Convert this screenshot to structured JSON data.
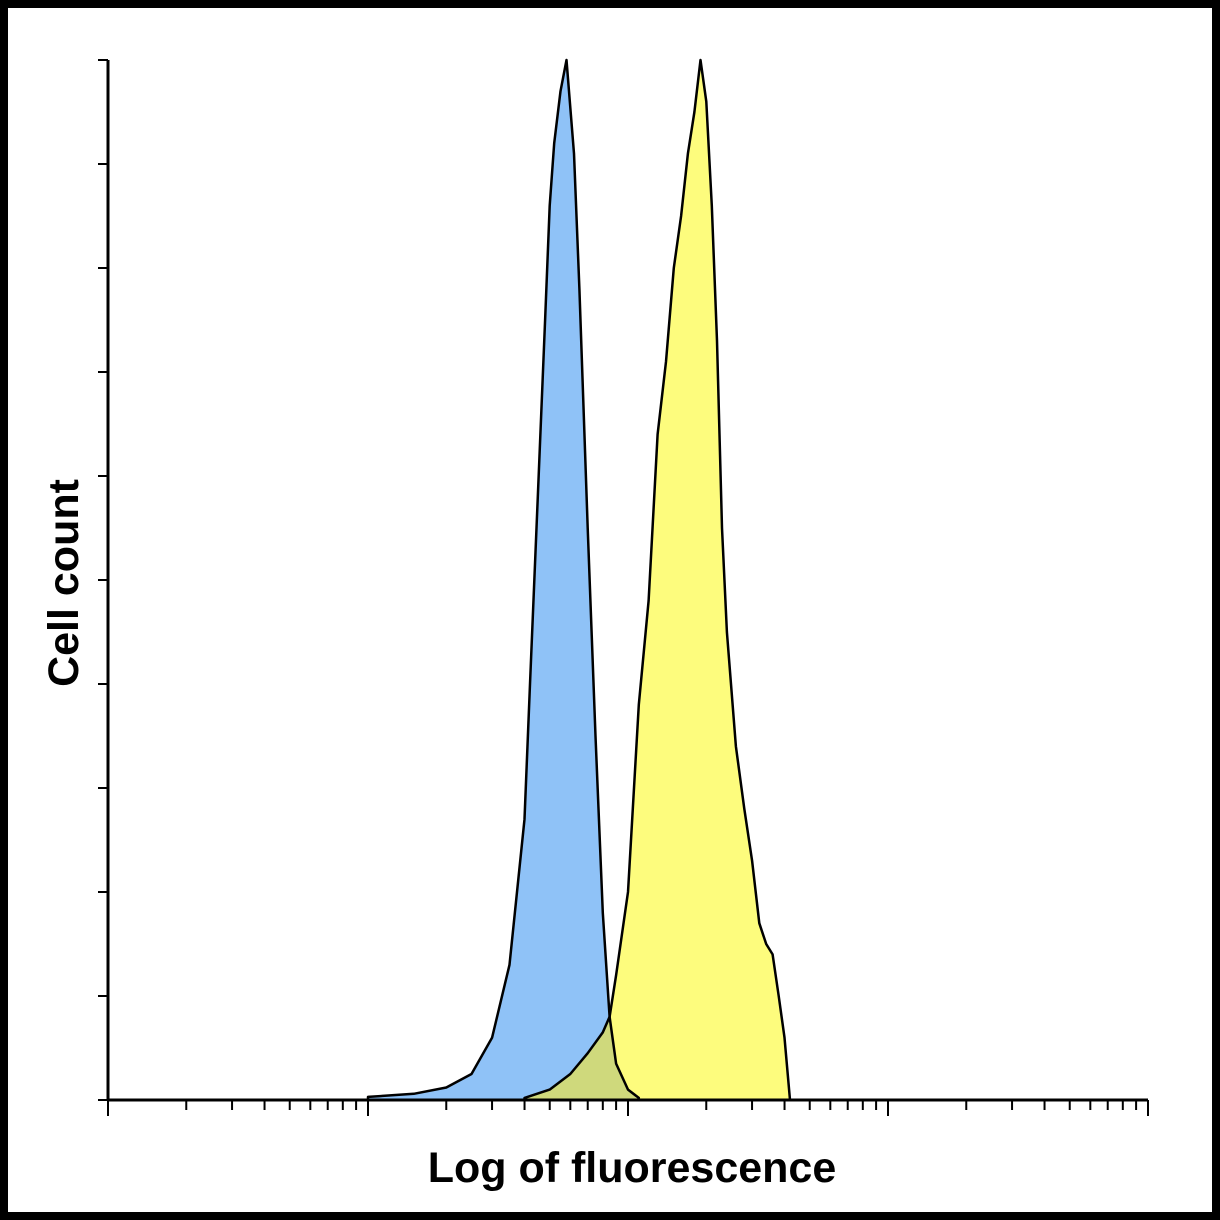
{
  "chart_data": {
    "type": "area",
    "title": "",
    "xlabel": "Log of fluorescence",
    "ylabel": "Cell count",
    "xscale": "log",
    "xlim": [
      1,
      10000
    ],
    "ylim": [
      0,
      100
    ],
    "grid": false,
    "legend": "none",
    "colors": {
      "blue_fill": "#8fc2f7",
      "yellow_fill": "#fdfc7d",
      "overlap_fill": "#cfd97c",
      "line": "#000000"
    },
    "series": [
      {
        "name": "",
        "color": "#8fc2f7",
        "x": [
          10,
          15,
          20,
          25,
          30,
          35,
          40,
          42,
          45,
          48,
          50,
          52,
          55,
          58,
          62,
          65,
          70,
          75,
          80,
          85,
          90,
          100,
          110
        ],
        "y": [
          0.3,
          0.6,
          1.2,
          2.5,
          6,
          13,
          27,
          40,
          58,
          75,
          86,
          92,
          97,
          100,
          91,
          78,
          55,
          35,
          18,
          8,
          3.5,
          1,
          0.2
        ]
      },
      {
        "name": "",
        "color": "#fdfc7d",
        "x": [
          40,
          50,
          60,
          70,
          80,
          85,
          90,
          100,
          110,
          120,
          130,
          140,
          150,
          160,
          170,
          180,
          190,
          200,
          210,
          220,
          230,
          240,
          260,
          280,
          300,
          320,
          340,
          360,
          380,
          400,
          420
        ],
        "y": [
          0.2,
          1,
          2.5,
          4.5,
          6.5,
          8,
          12,
          20,
          38,
          48,
          64,
          71,
          80,
          85,
          91,
          95,
          100,
          96,
          86,
          73,
          55,
          45,
          34,
          28,
          23,
          17,
          15,
          14,
          10,
          6,
          0
        ]
      }
    ]
  }
}
